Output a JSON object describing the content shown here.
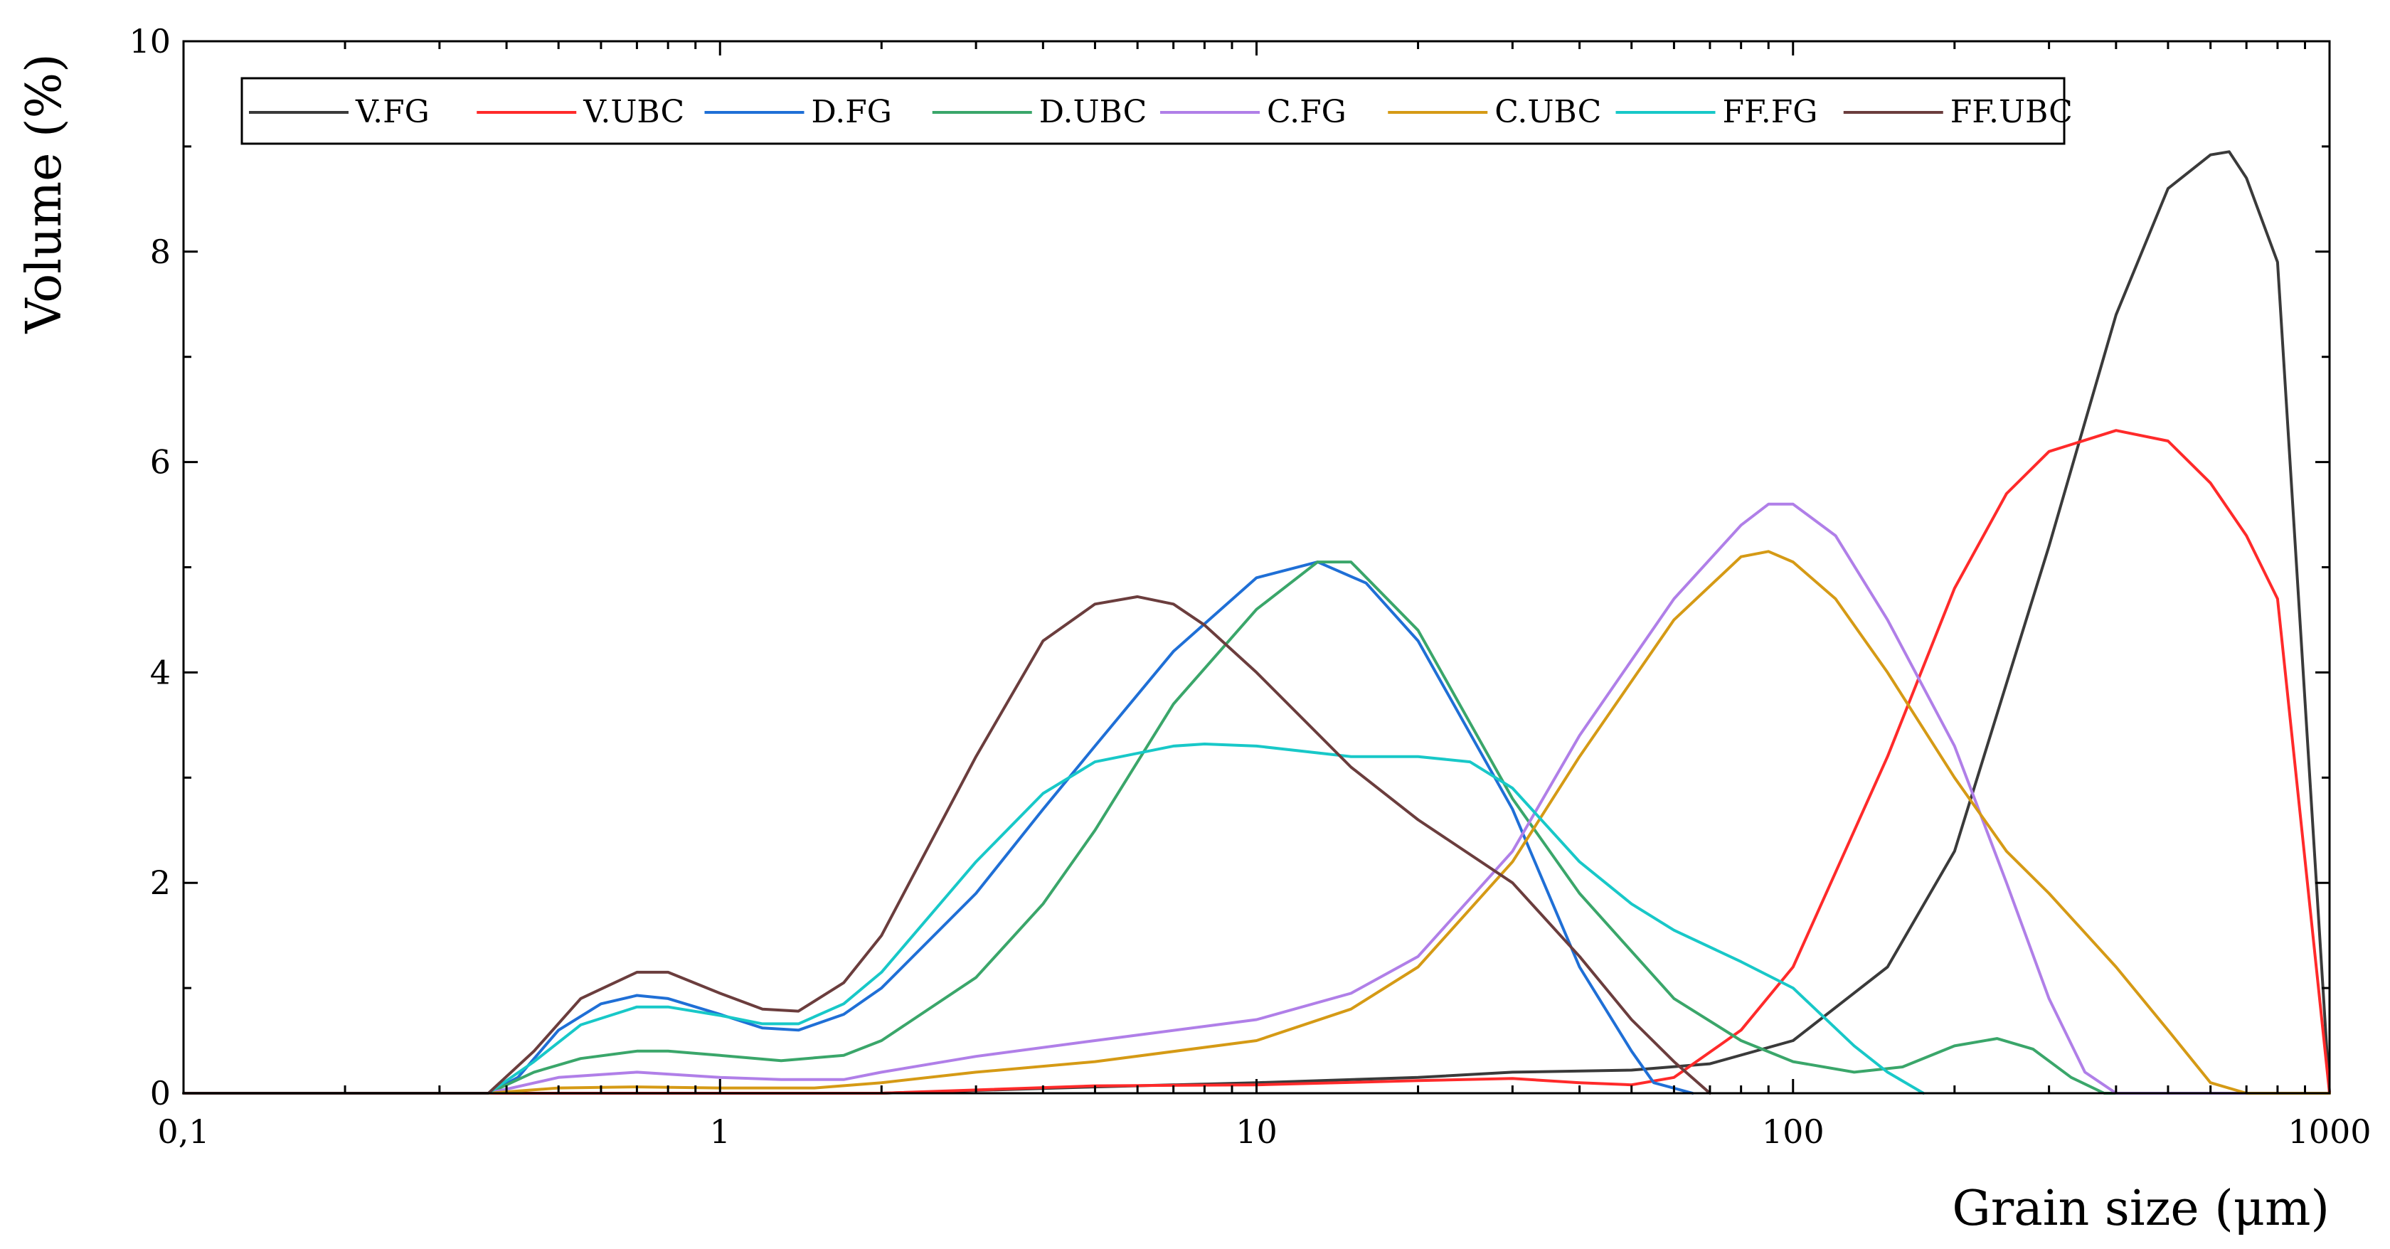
{
  "chart_data": {
    "type": "line",
    "title": "",
    "xlabel": "Grain size (μm)",
    "ylabel": "Volume (%)",
    "xscale": "log",
    "xlim": [
      0.1,
      1000
    ],
    "ylim": [
      0,
      10
    ],
    "x_ticks": [
      {
        "value": 0.1,
        "label": "0,1"
      },
      {
        "value": 1,
        "label": "1"
      },
      {
        "value": 10,
        "label": "10"
      },
      {
        "value": 100,
        "label": "100"
      },
      {
        "value": 1000,
        "label": "1000"
      }
    ],
    "y_ticks": [
      {
        "value": 0,
        "label": "0"
      },
      {
        "value": 2,
        "label": "2"
      },
      {
        "value": 4,
        "label": "4"
      },
      {
        "value": 6,
        "label": "6"
      },
      {
        "value": 8,
        "label": "8"
      },
      {
        "value": 10,
        "label": "10"
      }
    ],
    "legend_position": "top-left, horizontal",
    "series": [
      {
        "name": "V.FG",
        "color": "#3a3a3a",
        "x": [
          0.1,
          2,
          5,
          10,
          20,
          30,
          50,
          70,
          100,
          150,
          200,
          300,
          400,
          500,
          600,
          650,
          700,
          800,
          1000
        ],
        "y": [
          0,
          0,
          0.06,
          0.1,
          0.15,
          0.2,
          0.22,
          0.28,
          0.5,
          1.2,
          2.3,
          5.2,
          7.4,
          8.6,
          8.92,
          8.95,
          8.7,
          7.9,
          0
        ]
      },
      {
        "name": "V.UBC",
        "color": "#ff2a2a",
        "x": [
          0.1,
          2,
          5,
          10,
          20,
          30,
          40,
          50,
          60,
          80,
          100,
          150,
          200,
          250,
          300,
          400,
          500,
          600,
          700,
          800,
          1000
        ],
        "y": [
          0,
          0,
          0.07,
          0.08,
          0.12,
          0.14,
          0.1,
          0.08,
          0.15,
          0.6,
          1.2,
          3.2,
          4.8,
          5.7,
          6.1,
          6.3,
          6.2,
          5.8,
          5.3,
          4.7,
          0
        ]
      },
      {
        "name": "D.FG",
        "color": "#1f6fd6",
        "x": [
          0.1,
          0.37,
          0.42,
          0.5,
          0.6,
          0.7,
          0.8,
          1,
          1.2,
          1.4,
          1.7,
          2,
          3,
          4,
          5,
          7,
          10,
          13,
          16,
          20,
          30,
          40,
          50,
          55,
          65
        ],
        "y": [
          0,
          0,
          0.15,
          0.6,
          0.85,
          0.93,
          0.9,
          0.75,
          0.62,
          0.6,
          0.75,
          1.0,
          1.9,
          2.7,
          3.3,
          4.2,
          4.9,
          5.05,
          4.85,
          4.3,
          2.7,
          1.2,
          0.4,
          0.1,
          0
        ]
      },
      {
        "name": "D.UBC",
        "color": "#3aa66a",
        "x": [
          0.1,
          0.37,
          0.45,
          0.55,
          0.7,
          0.8,
          1,
          1.3,
          1.7,
          2,
          3,
          4,
          5,
          7,
          10,
          13,
          15,
          20,
          30,
          40,
          60,
          80,
          100,
          130,
          160,
          200,
          240,
          280,
          330,
          380,
          1000
        ],
        "y": [
          0,
          0,
          0.2,
          0.33,
          0.4,
          0.4,
          0.36,
          0.31,
          0.36,
          0.5,
          1.1,
          1.8,
          2.5,
          3.7,
          4.6,
          5.05,
          5.05,
          4.4,
          2.8,
          1.9,
          0.9,
          0.5,
          0.3,
          0.2,
          0.25,
          0.45,
          0.52,
          0.42,
          0.15,
          0,
          0
        ]
      },
      {
        "name": "C.FG",
        "color": "#b07fe8",
        "x": [
          0.1,
          0.37,
          0.5,
          0.7,
          1,
          1.3,
          1.7,
          2,
          3,
          5,
          10,
          15,
          20,
          30,
          40,
          60,
          80,
          90,
          100,
          120,
          150,
          200,
          250,
          300,
          350,
          400,
          1000
        ],
        "y": [
          0,
          0,
          0.15,
          0.2,
          0.15,
          0.13,
          0.13,
          0.2,
          0.35,
          0.5,
          0.7,
          0.95,
          1.3,
          2.3,
          3.4,
          4.7,
          5.4,
          5.6,
          5.6,
          5.3,
          4.5,
          3.3,
          2.0,
          0.9,
          0.2,
          0,
          0
        ]
      },
      {
        "name": "C.UBC",
        "color": "#d59a15",
        "x": [
          0.1,
          0.37,
          0.5,
          0.7,
          1,
          1.5,
          2,
          3,
          5,
          10,
          15,
          20,
          30,
          40,
          60,
          80,
          90,
          100,
          120,
          150,
          200,
          250,
          300,
          400,
          500,
          600,
          700,
          1000
        ],
        "y": [
          0,
          0,
          0.05,
          0.06,
          0.05,
          0.05,
          0.1,
          0.2,
          0.3,
          0.5,
          0.8,
          1.2,
          2.2,
          3.2,
          4.5,
          5.1,
          5.15,
          5.05,
          4.7,
          4.0,
          3.0,
          2.3,
          1.9,
          1.2,
          0.6,
          0.1,
          0,
          0
        ]
      },
      {
        "name": "FF.FG",
        "color": "#18c8c8",
        "x": [
          0.1,
          0.37,
          0.45,
          0.55,
          0.7,
          0.8,
          1,
          1.2,
          1.4,
          1.7,
          2,
          3,
          4,
          5,
          7,
          8,
          10,
          15,
          20,
          25,
          30,
          40,
          50,
          60,
          80,
          100,
          130,
          150,
          175
        ],
        "y": [
          0,
          0,
          0.3,
          0.65,
          0.82,
          0.82,
          0.74,
          0.66,
          0.66,
          0.85,
          1.15,
          2.2,
          2.85,
          3.15,
          3.3,
          3.32,
          3.3,
          3.2,
          3.2,
          3.15,
          2.9,
          2.2,
          1.8,
          1.55,
          1.25,
          1.0,
          0.45,
          0.2,
          0
        ]
      },
      {
        "name": "FF.UBC",
        "color": "#6b3d3d",
        "x": [
          0.1,
          0.37,
          0.45,
          0.55,
          0.7,
          0.8,
          1,
          1.2,
          1.4,
          1.7,
          2,
          3,
          4,
          5,
          6,
          7,
          8,
          10,
          15,
          20,
          30,
          40,
          50,
          60,
          70
        ],
        "y": [
          0,
          0,
          0.4,
          0.9,
          1.15,
          1.15,
          0.95,
          0.8,
          0.78,
          1.05,
          1.5,
          3.2,
          4.3,
          4.65,
          4.72,
          4.65,
          4.45,
          4.0,
          3.1,
          2.6,
          2.0,
          1.3,
          0.7,
          0.3,
          0
        ]
      }
    ]
  }
}
